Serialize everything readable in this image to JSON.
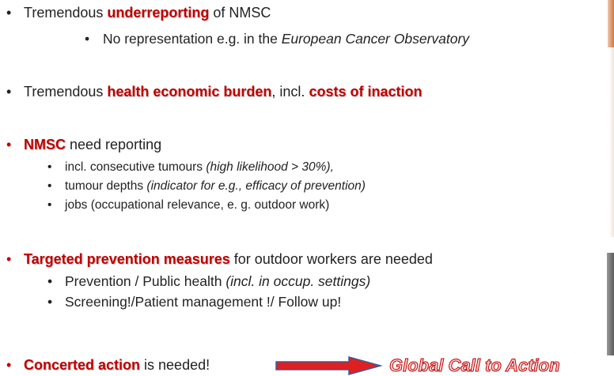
{
  "items": [
    {
      "text": [
        "Tremendous ",
        "underreporting",
        " of NMSC"
      ],
      "sub": [
        [
          "No representation e.g. in the ",
          "European Cancer Observatory"
        ]
      ]
    },
    {
      "text": [
        "Tremendous ",
        "health economic burden",
        ", incl. ",
        "costs of inaction"
      ]
    },
    {
      "text": [
        "NMSC",
        " need reporting"
      ],
      "sub": [
        [
          "incl. consecutive tumours ",
          "(high likelihood > 30%),"
        ],
        [
          "tumour depths ",
          "(indicator for e.g., efficacy of prevention)"
        ],
        [
          "jobs (occupational relevance, e. g. outdoor work)"
        ]
      ]
    },
    {
      "text": [
        "Targeted prevention measures",
        " for outdoor workers are needed"
      ],
      "sub": [
        [
          "Prevention / Public health ",
          "(incl. in occup. settings)"
        ],
        [
          "Screening!/Patient management !/ Follow up!"
        ]
      ]
    },
    {
      "text": [
        "Concerted action",
        " is needed!"
      ]
    }
  ],
  "call_to_action": "Global Call to Action"
}
